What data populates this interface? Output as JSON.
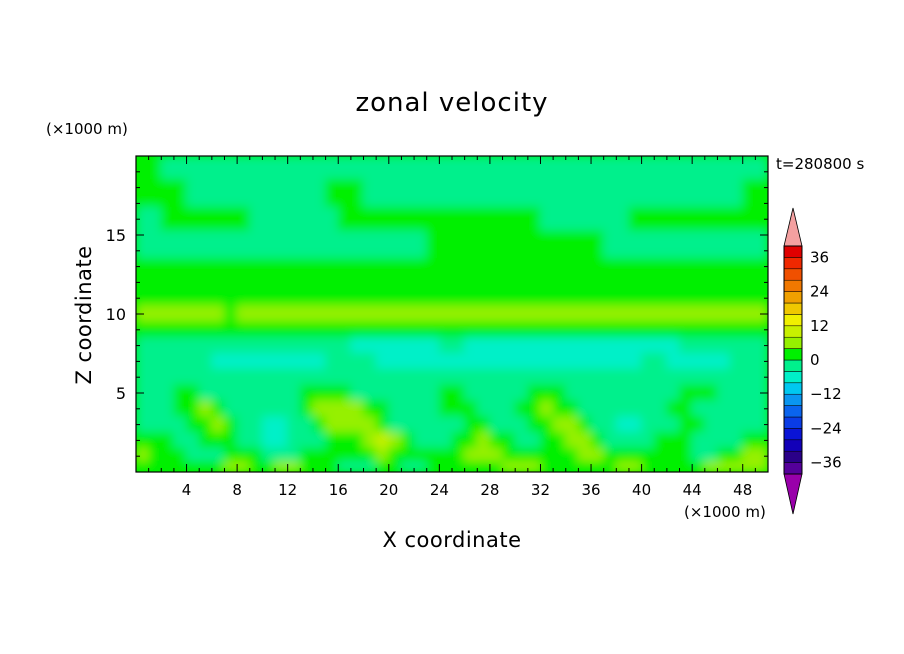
{
  "chart_data": {
    "type": "heatmap",
    "title": "zonal velocity",
    "xlabel": "X coordinate",
    "ylabel": "Z coordinate",
    "x_unit": "(×1000 m)",
    "y_unit": "(×1000 m)",
    "time_label": "t=280800 s",
    "xlim": [
      0,
      50
    ],
    "ylim": [
      0,
      20
    ],
    "x_ticks": [
      4,
      8,
      12,
      16,
      20,
      24,
      28,
      32,
      36,
      40,
      44,
      48
    ],
    "y_ticks": [
      5,
      10,
      15
    ],
    "colorbar": {
      "levels": [
        -40,
        -36,
        -32,
        -28,
        -24,
        -20,
        -16,
        -12,
        -8,
        -4,
        0,
        4,
        8,
        12,
        16,
        20,
        24,
        28,
        32,
        36,
        40
      ],
      "tick_labels": [
        "36",
        "24",
        "12",
        "0",
        "−12",
        "−24",
        "−36"
      ],
      "tick_values": [
        36,
        24,
        12,
        0,
        -12,
        -24,
        -36
      ],
      "colors": [
        "#55009a",
        "#2a0088",
        "#1200b8",
        "#0a14d6",
        "#0a3ce6",
        "#0a64ee",
        "#0a96f0",
        "#00c8f0",
        "#00f0c8",
        "#00f08c",
        "#00f000",
        "#96f000",
        "#c8f000",
        "#f0f000",
        "#f0c800",
        "#f0a000",
        "#f07800",
        "#f05000",
        "#f02800",
        "#e00000"
      ],
      "under_color": "#9900aa",
      "over_color": "#f4a0a0"
    },
    "field_rows_top_to_bottom": [
      {
        "z": 19.5,
        "v": [
          0,
          0,
          -4,
          -4,
          -4,
          -4,
          -4,
          -4,
          -4,
          -4,
          -4,
          -4,
          -4,
          -4,
          -4,
          -4,
          -4,
          -4,
          -4,
          -4,
          -4,
          -4,
          -4,
          -4,
          -4,
          -4,
          -4,
          -4,
          -4,
          -4,
          -4,
          -4,
          -4,
          -4,
          -4,
          -4,
          -4,
          -4,
          -4,
          -4,
          -4,
          -4,
          -4,
          -4,
          -4,
          -4,
          -4,
          -4,
          -4,
          -4
        ]
      },
      {
        "z": 17.5,
        "v": [
          0,
          0,
          0,
          0,
          -4,
          -4,
          -4,
          -4,
          -4,
          -4,
          -4,
          -4,
          -4,
          -4,
          -4,
          0,
          0,
          0,
          -4,
          -4,
          -4,
          -4,
          -4,
          -4,
          -4,
          -4,
          -4,
          -4,
          -4,
          -4,
          -4,
          -4,
          -4,
          -4,
          -4,
          -4,
          -4,
          -4,
          -4,
          -4,
          -4,
          -4,
          -4,
          -4,
          -4,
          -4,
          -4,
          -4,
          0,
          0
        ]
      },
      {
        "z": 16,
        "v": [
          -4,
          -4,
          0,
          0,
          0,
          0,
          0,
          0,
          0,
          -4,
          -4,
          -4,
          -4,
          -4,
          -4,
          -4,
          0,
          0,
          0,
          0,
          0,
          0,
          0,
          0,
          0,
          0,
          0,
          0,
          0,
          0,
          0,
          0,
          -4,
          -4,
          -4,
          -4,
          -4,
          -4,
          -4,
          0,
          0,
          0,
          0,
          0,
          0,
          0,
          0,
          0,
          0,
          0
        ]
      },
      {
        "z": 14.5,
        "v": [
          -4,
          -4,
          -4,
          -4,
          -4,
          -4,
          -4,
          -4,
          -4,
          -4,
          -4,
          -4,
          -4,
          -4,
          -4,
          -4,
          -4,
          -4,
          -4,
          -4,
          -4,
          -4,
          -4,
          0,
          0,
          0,
          0,
          0,
          0,
          0,
          0,
          0,
          0,
          0,
          0,
          0,
          0,
          -4,
          -4,
          -4,
          -4,
          -4,
          -4,
          -4,
          -4,
          -4,
          -4,
          -4,
          -4,
          -4
        ]
      },
      {
        "z": 12.5,
        "v": [
          0,
          0,
          0,
          0,
          0,
          0,
          0,
          0,
          0,
          0,
          0,
          0,
          0,
          0,
          0,
          0,
          0,
          0,
          0,
          0,
          0,
          0,
          0,
          0,
          0,
          0,
          0,
          0,
          0,
          0,
          0,
          0,
          0,
          0,
          0,
          0,
          0,
          0,
          0,
          0,
          0,
          0,
          0,
          0,
          0,
          0,
          0,
          0,
          0,
          0
        ]
      },
      {
        "z": 11,
        "v": [
          0,
          0,
          0,
          0,
          0,
          0,
          0,
          0,
          0,
          0,
          0,
          0,
          0,
          0,
          0,
          0,
          0,
          0,
          0,
          0,
          0,
          0,
          0,
          0,
          0,
          0,
          0,
          0,
          0,
          0,
          0,
          0,
          0,
          0,
          0,
          0,
          0,
          0,
          0,
          0,
          0,
          0,
          0,
          0,
          0,
          0,
          0,
          0,
          0,
          0
        ]
      },
      {
        "z": 10,
        "v": [
          4,
          4,
          4,
          4,
          4,
          4,
          4,
          0,
          4,
          4,
          4,
          4,
          4,
          4,
          4,
          4,
          4,
          4,
          4,
          4,
          4,
          4,
          4,
          4,
          4,
          4,
          4,
          4,
          4,
          4,
          4,
          4,
          4,
          4,
          4,
          4,
          4,
          4,
          4,
          4,
          4,
          4,
          4,
          4,
          4,
          4,
          4,
          4,
          4,
          4
        ]
      },
      {
        "z": 9,
        "v": [
          0,
          0,
          0,
          0,
          0,
          0,
          0,
          0,
          0,
          0,
          0,
          0,
          0,
          0,
          0,
          0,
          0,
          0,
          0,
          0,
          0,
          0,
          0,
          0,
          0,
          0,
          0,
          0,
          0,
          0,
          0,
          0,
          0,
          0,
          0,
          0,
          0,
          0,
          0,
          0,
          0,
          0,
          0,
          0,
          0,
          0,
          0,
          0,
          0,
          0
        ]
      },
      {
        "z": 8,
        "v": [
          -4,
          -4,
          -4,
          -4,
          -4,
          -4,
          -4,
          -4,
          -4,
          -4,
          -4,
          -4,
          -4,
          -4,
          -4,
          -4,
          -4,
          -8,
          -8,
          -8,
          -8,
          -8,
          -8,
          -8,
          -4,
          -4,
          -8,
          -8,
          -8,
          -8,
          -8,
          -8,
          -8,
          -8,
          -8,
          -8,
          -8,
          -8,
          -8,
          -8,
          -8,
          -8,
          -8,
          -4,
          -4,
          -4,
          -4,
          -4,
          -4,
          -4
        ]
      },
      {
        "z": 7,
        "v": [
          -4,
          -4,
          -4,
          -4,
          -4,
          -4,
          -8,
          -8,
          -8,
          -8,
          -8,
          -8,
          -8,
          -8,
          -8,
          -4,
          -4,
          -4,
          -4,
          -8,
          -8,
          -8,
          -8,
          -8,
          -8,
          -8,
          -8,
          -8,
          -8,
          -8,
          -8,
          -8,
          -8,
          -8,
          -8,
          -8,
          -8,
          -8,
          -8,
          -8,
          -4,
          -4,
          -8,
          -8,
          -8,
          -8,
          -8,
          -4,
          -4,
          -4
        ]
      },
      {
        "z": 6,
        "v": [
          -4,
          -4,
          -4,
          -4,
          -4,
          -4,
          -4,
          -4,
          -4,
          -4,
          -4,
          -4,
          -4,
          -4,
          -4,
          -4,
          -4,
          -4,
          -4,
          -4,
          -4,
          -4,
          -4,
          -4,
          -4,
          -4,
          -4,
          -4,
          -4,
          -4,
          -4,
          -4,
          -4,
          -4,
          -4,
          -4,
          -4,
          -4,
          -4,
          -4,
          -4,
          -4,
          -4,
          -4,
          -4,
          -4,
          -4,
          -4,
          -4,
          -4
        ]
      },
      {
        "z": 5,
        "v": [
          -4,
          -4,
          -4,
          0,
          0,
          -4,
          -4,
          -4,
          -4,
          -4,
          -4,
          -4,
          -4,
          0,
          0,
          0,
          0,
          -4,
          -4,
          -4,
          -4,
          -4,
          -4,
          -4,
          0,
          0,
          -4,
          -4,
          -4,
          -4,
          -4,
          0,
          0,
          0,
          -4,
          -4,
          -4,
          -4,
          -4,
          -4,
          -4,
          -4,
          -4,
          0,
          0,
          0,
          -4,
          -4,
          -4,
          -4
        ]
      },
      {
        "z": 4,
        "v": [
          -4,
          -4,
          -4,
          0,
          0,
          4,
          0,
          -4,
          -4,
          -4,
          -4,
          -4,
          -4,
          0,
          4,
          4,
          4,
          4,
          0,
          0,
          -4,
          -4,
          -4,
          -4,
          0,
          0,
          0,
          -4,
          -4,
          -4,
          0,
          0,
          4,
          0,
          0,
          -4,
          -4,
          -4,
          -4,
          -4,
          -4,
          -4,
          0,
          0,
          -4,
          -4,
          -4,
          -4,
          -4,
          -4
        ]
      },
      {
        "z": 3,
        "v": [
          -4,
          -4,
          -4,
          -4,
          0,
          0,
          4,
          0,
          -4,
          -4,
          -8,
          -8,
          -4,
          -4,
          0,
          4,
          4,
          4,
          4,
          0,
          -4,
          -4,
          -4,
          -4,
          -4,
          -4,
          0,
          0,
          -4,
          -4,
          -4,
          0,
          0,
          4,
          4,
          0,
          -4,
          -4,
          -8,
          -8,
          -4,
          -4,
          -4,
          0,
          0,
          -4,
          -4,
          -4,
          -4,
          -4
        ]
      },
      {
        "z": 2,
        "v": [
          0,
          0,
          0,
          -4,
          -4,
          0,
          0,
          0,
          -4,
          -4,
          -8,
          -8,
          -4,
          -4,
          -4,
          0,
          0,
          0,
          4,
          8,
          4,
          0,
          -4,
          -4,
          -4,
          0,
          0,
          4,
          0,
          0,
          -4,
          -4,
          0,
          0,
          4,
          4,
          0,
          -4,
          -4,
          -4,
          -4,
          0,
          0,
          0,
          -4,
          -4,
          -4,
          -4,
          0,
          0
        ]
      },
      {
        "z": 1,
        "v": [
          4,
          0,
          0,
          0,
          -4,
          -4,
          -4,
          0,
          0,
          0,
          -4,
          -4,
          -4,
          0,
          0,
          0,
          0,
          0,
          0,
          4,
          0,
          0,
          0,
          0,
          0,
          0,
          4,
          4,
          4,
          0,
          0,
          0,
          0,
          0,
          0,
          4,
          4,
          0,
          0,
          0,
          0,
          0,
          0,
          0,
          -4,
          -4,
          0,
          0,
          4,
          4
        ]
      },
      {
        "z": 0.3,
        "v": [
          0,
          0,
          0,
          0,
          0,
          0,
          0,
          4,
          4,
          0,
          0,
          4,
          4,
          0,
          0,
          0,
          -4,
          -4,
          -4,
          0,
          0,
          -4,
          -4,
          0,
          0,
          0,
          0,
          0,
          0,
          4,
          4,
          4,
          0,
          0,
          0,
          0,
          0,
          0,
          4,
          4,
          0,
          0,
          0,
          0,
          0,
          4,
          4,
          4,
          4,
          4
        ]
      }
    ]
  }
}
